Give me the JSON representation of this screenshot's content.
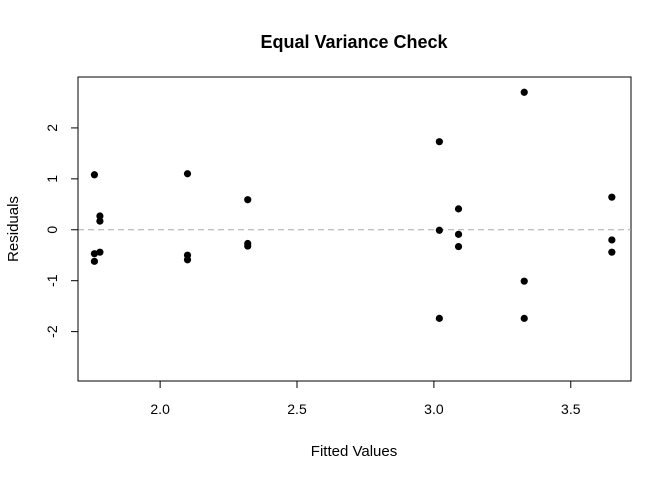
{
  "chart_data": {
    "type": "scatter",
    "title": "Equal Variance Check",
    "xlabel": "Fitted Values",
    "ylabel": "Residuals",
    "xlim": [
      1.7,
      3.72
    ],
    "ylim": [
      -2.97,
      3.0
    ],
    "x_ticks": [
      2.0,
      2.5,
      3.0,
      3.5
    ],
    "x_tick_labels": [
      "2.0",
      "2.5",
      "3.0",
      "3.5"
    ],
    "y_ticks": [
      -2,
      -1,
      0,
      1,
      2
    ],
    "y_tick_labels": [
      "-2",
      "-1",
      "0",
      "1",
      "2"
    ],
    "reference_line": {
      "y": 0,
      "style": "dashed",
      "color": "#aaaaaa"
    },
    "point_color": "#000000",
    "grid": false,
    "points": [
      {
        "x": 1.76,
        "y": 1.08
      },
      {
        "x": 1.76,
        "y": -0.47
      },
      {
        "x": 1.76,
        "y": -0.62
      },
      {
        "x": 1.78,
        "y": 0.27
      },
      {
        "x": 1.78,
        "y": 0.17
      },
      {
        "x": 1.78,
        "y": -0.44
      },
      {
        "x": 2.1,
        "y": 1.1
      },
      {
        "x": 2.1,
        "y": -0.5
      },
      {
        "x": 2.1,
        "y": -0.59
      },
      {
        "x": 2.32,
        "y": 0.59
      },
      {
        "x": 2.32,
        "y": -0.27
      },
      {
        "x": 2.32,
        "y": -0.32
      },
      {
        "x": 3.02,
        "y": 1.73
      },
      {
        "x": 3.02,
        "y": -0.01
      },
      {
        "x": 3.02,
        "y": -1.74
      },
      {
        "x": 3.09,
        "y": 0.41
      },
      {
        "x": 3.09,
        "y": -0.09
      },
      {
        "x": 3.09,
        "y": -0.33
      },
      {
        "x": 3.33,
        "y": 2.7
      },
      {
        "x": 3.33,
        "y": -1.01
      },
      {
        "x": 3.33,
        "y": -1.74
      },
      {
        "x": 3.65,
        "y": 0.64
      },
      {
        "x": 3.65,
        "y": -0.2
      },
      {
        "x": 3.65,
        "y": -0.44
      }
    ]
  }
}
